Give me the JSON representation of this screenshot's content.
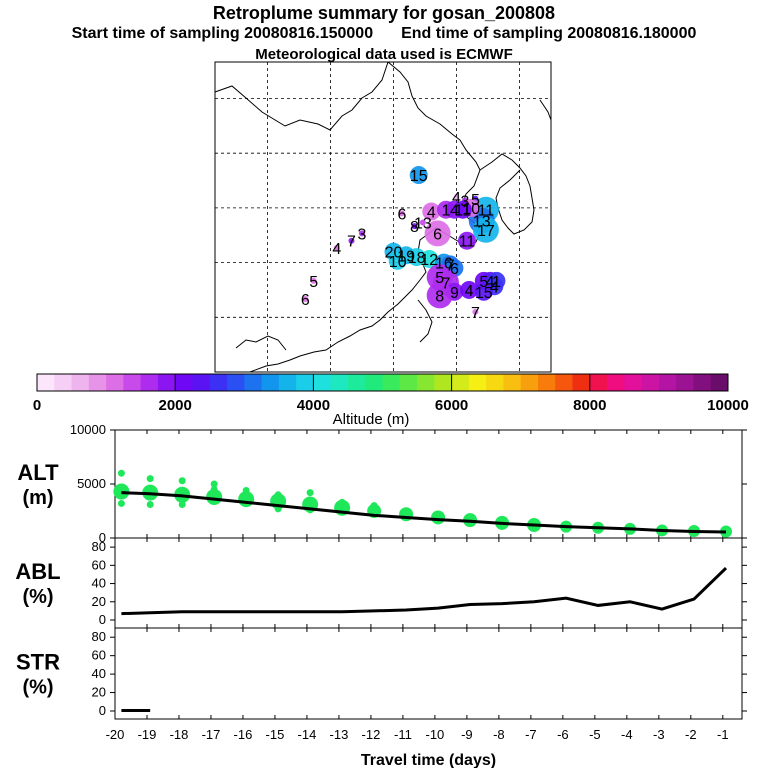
{
  "header": {
    "title": "Retroplume summary for gosan_200808",
    "start": "Start time of sampling 20080816.150000",
    "end": "End time of sampling 20080816.180000",
    "met": "Meteorological data used is ECMWF"
  },
  "map": {
    "markers": [
      {
        "label": "15",
        "lon": 125.2,
        "lat": 36.8,
        "alt": 3400,
        "size": "m"
      },
      {
        "label": "4",
        "lon": 127.0,
        "lat": 35.6,
        "alt": 600,
        "size": "s"
      },
      {
        "label": "3",
        "lon": 127.4,
        "lat": 35.4,
        "alt": 1500,
        "size": "s"
      },
      {
        "label": "5",
        "lon": 127.9,
        "lat": 35.5,
        "alt": 2300,
        "size": "s"
      },
      {
        "label": "11",
        "lon": 128.4,
        "lat": 34.9,
        "alt": 3600,
        "size": "l"
      },
      {
        "label": "13",
        "lon": 128.2,
        "lat": 34.3,
        "alt": 3200,
        "size": "l"
      },
      {
        "label": "10",
        "lon": 127.7,
        "lat": 35.0,
        "alt": 1100,
        "size": "m"
      },
      {
        "label": "6",
        "lon": 124.4,
        "lat": 34.7,
        "alt": 1000,
        "size": "s"
      },
      {
        "label": "4",
        "lon": 125.8,
        "lat": 34.8,
        "alt": 1200,
        "size": "m"
      },
      {
        "label": "1",
        "lon": 126.5,
        "lat": 34.9,
        "alt": 1700,
        "size": "m"
      },
      {
        "label": "4",
        "lon": 126.9,
        "lat": 34.9,
        "alt": 1800,
        "size": "m"
      },
      {
        "label": "11",
        "lon": 127.3,
        "lat": 34.9,
        "alt": 2000,
        "size": "m"
      },
      {
        "label": "13",
        "lon": 125.4,
        "lat": 34.2,
        "alt": 1300,
        "size": "s"
      },
      {
        "label": "8",
        "lon": 125.0,
        "lat": 34.0,
        "alt": 2000,
        "size": "s"
      },
      {
        "label": "6",
        "lon": 126.1,
        "lat": 33.6,
        "alt": 1000,
        "size": "l"
      },
      {
        "label": "11",
        "lon": 127.5,
        "lat": 33.2,
        "alt": 1800,
        "size": "m"
      },
      {
        "label": "17",
        "lon": 128.4,
        "lat": 33.8,
        "alt": 3700,
        "size": "l"
      },
      {
        "label": "7",
        "lon": 122.0,
        "lat": 33.2,
        "alt": 1800,
        "size": "s"
      },
      {
        "label": "3",
        "lon": 122.5,
        "lat": 33.6,
        "alt": 1500,
        "size": "s"
      },
      {
        "label": "4",
        "lon": 121.3,
        "lat": 32.8,
        "alt": 1200,
        "size": "s"
      },
      {
        "label": "20",
        "lon": 124.0,
        "lat": 32.6,
        "alt": 3500,
        "size": "m"
      },
      {
        "label": "19",
        "lon": 124.6,
        "lat": 32.4,
        "alt": 3700,
        "size": "m"
      },
      {
        "label": "18",
        "lon": 125.1,
        "lat": 32.3,
        "alt": 3900,
        "size": "m"
      },
      {
        "label": "12",
        "lon": 125.7,
        "lat": 32.2,
        "alt": 4100,
        "size": "m"
      },
      {
        "label": "10",
        "lon": 124.2,
        "lat": 32.1,
        "alt": 3800,
        "size": "m"
      },
      {
        "label": "16",
        "lon": 126.4,
        "lat": 32.0,
        "alt": 3300,
        "size": "m"
      },
      {
        "label": "7",
        "lon": 126.7,
        "lat": 31.9,
        "alt": 3200,
        "size": "m"
      },
      {
        "label": "6",
        "lon": 126.9,
        "lat": 31.7,
        "alt": 3100,
        "size": "m"
      },
      {
        "label": "5",
        "lon": 126.2,
        "lat": 31.2,
        "alt": 1600,
        "size": "l"
      },
      {
        "label": "7",
        "lon": 126.5,
        "lat": 30.9,
        "alt": 1700,
        "size": "l"
      },
      {
        "label": "5",
        "lon": 128.3,
        "lat": 31.0,
        "alt": 2200,
        "size": "m"
      },
      {
        "label": "4",
        "lon": 128.6,
        "lat": 31.0,
        "alt": 2400,
        "size": "m"
      },
      {
        "label": "1",
        "lon": 128.9,
        "lat": 31.0,
        "alt": 2700,
        "size": "m"
      },
      {
        "label": "4",
        "lon": 128.8,
        "lat": 30.7,
        "alt": 2600,
        "size": "m"
      },
      {
        "label": "9",
        "lon": 126.9,
        "lat": 30.4,
        "alt": 1900,
        "size": "m"
      },
      {
        "label": "4",
        "lon": 127.6,
        "lat": 30.5,
        "alt": 2100,
        "size": "m"
      },
      {
        "label": "15",
        "lon": 128.3,
        "lat": 30.4,
        "alt": 2300,
        "size": "m"
      },
      {
        "label": "8",
        "lon": 126.2,
        "lat": 30.2,
        "alt": 1600,
        "size": "l"
      },
      {
        "label": "5",
        "lon": 120.2,
        "lat": 31.0,
        "alt": 1000,
        "size": "s"
      },
      {
        "label": "6",
        "lon": 119.8,
        "lat": 30.0,
        "alt": 1000,
        "size": "s"
      },
      {
        "label": "7",
        "lon": 127.9,
        "lat": 29.3,
        "alt": 1200,
        "size": "s"
      }
    ]
  },
  "colorbar": {
    "tick_labels": [
      "0",
      "2000",
      "4000",
      "6000",
      "8000",
      "10000"
    ],
    "label": "Altitude (m)",
    "colors": [
      "#fbe6fb",
      "#f5cff5",
      "#eeb4ee",
      "#e793e7",
      "#dd6fe6",
      "#c94aeb",
      "#ad2cee",
      "#8c16f2",
      "#6f08f4",
      "#5c13f4",
      "#3b30f4",
      "#2a4ff2",
      "#1c72ef",
      "#1295ec",
      "#14b4eb",
      "#1acde8",
      "#1ee0dc",
      "#1ee8bf",
      "#1eea9c",
      "#20ea7b",
      "#3aea5d",
      "#5ee846",
      "#87e62f",
      "#b0e620",
      "#d4ea1a",
      "#f5ef14",
      "#f7d912",
      "#f8be10",
      "#f89f0e",
      "#f77c0c",
      "#f4570d",
      "#ef2f12",
      "#f0124f",
      "#f00d7f",
      "#e2109a",
      "#cc14a4",
      "#b414a4",
      "#9b1292",
      "#820f7e",
      "#6a0c6a"
    ]
  },
  "chart_data": [
    {
      "type": "scatter",
      "name": "ALT",
      "ylabel": "ALT\n(m)",
      "ylim": [
        0,
        10000
      ],
      "yticks": [
        0,
        5000,
        10000
      ],
      "x": [
        -19.8,
        -18.9,
        -17.9,
        -16.9,
        -15.9,
        -14.9,
        -13.9,
        -12.9,
        -11.9,
        -10.9,
        -9.9,
        -8.9,
        -7.9,
        -6.9,
        -5.9,
        -4.9,
        -3.9,
        -2.9,
        -1.9,
        -0.9
      ],
      "means": [
        4300,
        4200,
        4000,
        3800,
        3600,
        3400,
        3100,
        2800,
        2500,
        2200,
        1900,
        1650,
        1400,
        1200,
        1050,
        950,
        850,
        700,
        650,
        600
      ],
      "extra_points": [
        {
          "x": -19.8,
          "y": 6000
        },
        {
          "x": -19.8,
          "y": 3200
        },
        {
          "x": -18.9,
          "y": 5500
        },
        {
          "x": -18.9,
          "y": 3100
        },
        {
          "x": -17.9,
          "y": 5300
        },
        {
          "x": -17.9,
          "y": 3100
        },
        {
          "x": -16.9,
          "y": 5000
        },
        {
          "x": -16.9,
          "y": 4500
        },
        {
          "x": -15.9,
          "y": 4400
        },
        {
          "x": -14.9,
          "y": 4000
        },
        {
          "x": -14.9,
          "y": 2700
        },
        {
          "x": -13.9,
          "y": 4200
        },
        {
          "x": -13.9,
          "y": 2600
        },
        {
          "x": -12.9,
          "y": 3300
        },
        {
          "x": -11.9,
          "y": 3000
        },
        {
          "x": -10.9,
          "y": 2500
        }
      ],
      "line_y": [
        4200,
        4100,
        3900,
        3600,
        3300,
        3000,
        2700,
        2400,
        2100,
        1900,
        1700,
        1550,
        1350,
        1200,
        1050,
        950,
        850,
        700,
        600,
        550
      ],
      "color": "#1ee85a"
    },
    {
      "type": "line",
      "name": "ABL",
      "ylabel": "ABL\n(%)",
      "ylim": [
        0,
        90
      ],
      "yticks": [
        0,
        20,
        40,
        60,
        80
      ],
      "x": [
        -19.8,
        -18.9,
        -17.9,
        -16.9,
        -15.9,
        -14.9,
        -13.9,
        -12.9,
        -11.9,
        -10.9,
        -9.9,
        -8.9,
        -7.9,
        -6.9,
        -5.9,
        -4.9,
        -3.9,
        -2.9,
        -1.9,
        -0.9
      ],
      "values": [
        7,
        8,
        9,
        9,
        9,
        9,
        9,
        9,
        10,
        11,
        13,
        17,
        18,
        20,
        24,
        16,
        20,
        12,
        23,
        57
      ]
    },
    {
      "type": "line",
      "name": "STR",
      "ylabel": "STR\n(%)",
      "ylim": [
        0,
        90
      ],
      "yticks": [
        0,
        20,
        40,
        60,
        80
      ],
      "x": [
        -19.8,
        -18.9
      ],
      "values": [
        0.5,
        0.5
      ],
      "xlabel": "Travel time (days)",
      "xticks": [
        -20,
        -19,
        -18,
        -17,
        -16,
        -15,
        -14,
        -13,
        -12,
        -11,
        -10,
        -9,
        -8,
        -7,
        -6,
        -5,
        -4,
        -3,
        -2,
        -1
      ]
    }
  ]
}
